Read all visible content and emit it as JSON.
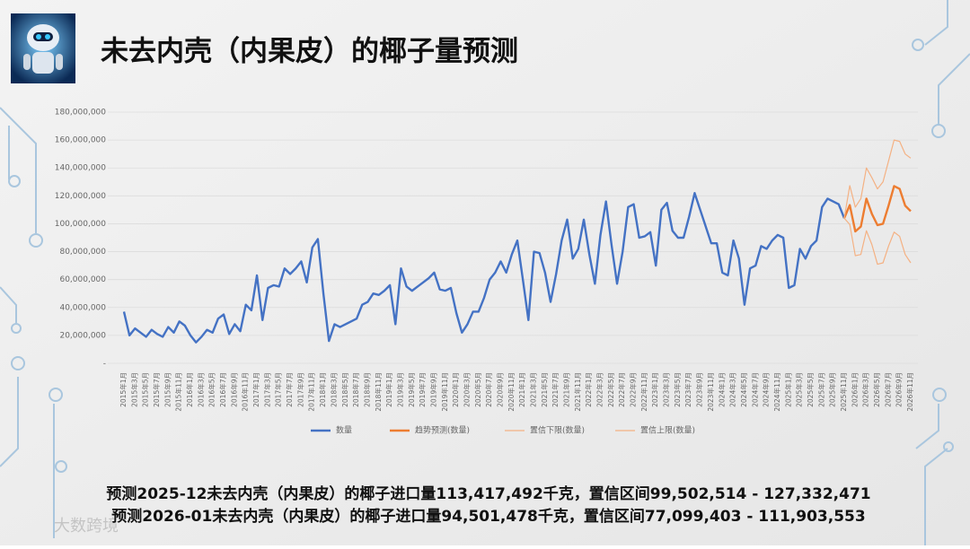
{
  "title": "未去内壳（内果皮）的椰子量预测",
  "watermark": "大数跨境",
  "notes": [
    "预测2025-12未去内壳（内果皮）的椰子进口量113,417,492千克，置信区间99,502,514 - 127,332,471",
    "预测2026-01未去内壳（内果皮）的椰子进口量94,501,478千克，置信区间77,099,403 - 111,903,553"
  ],
  "chart_data": {
    "type": "line",
    "categories": [
      "2015年1月",
      null,
      "2015年3月",
      null,
      "2015年5月",
      null,
      "2015年7月",
      null,
      "2015年9月",
      null,
      "2015年11月",
      null,
      "2016年1月",
      null,
      "2016年3月",
      null,
      "2016年5月",
      null,
      "2016年7月",
      null,
      "2016年9月",
      null,
      "2016年11月",
      null,
      "2017年1月",
      null,
      "2017年3月",
      null,
      "2017年5月",
      null,
      "2017年7月",
      null,
      "2017年9月",
      null,
      "2017年11月",
      null,
      "2018年1月",
      null,
      "2018年3月",
      null,
      "2018年5月",
      null,
      "2018年7月",
      null,
      "2018年9月",
      null,
      "2018年11月",
      null,
      "2019年1月",
      null,
      "2019年3月",
      null,
      "2019年5月",
      null,
      "2019年7月",
      null,
      "2019年9月",
      null,
      "2019年11月",
      null,
      "2020年1月",
      null,
      "2020年3月",
      null,
      "2020年5月",
      null,
      "2020年7月",
      null,
      "2020年9月",
      null,
      "2020年11月",
      null,
      "2021年1月",
      null,
      "2021年3月",
      null,
      "2021年5月",
      null,
      "2021年7月",
      null,
      "2021年9月",
      null,
      "2021年11月",
      null,
      "2022年1月",
      null,
      "2022年3月",
      null,
      "2022年5月",
      null,
      "2022年7月",
      null,
      "2022年9月",
      null,
      "2022年11月",
      null,
      "2023年1月",
      null,
      "2023年3月",
      null,
      "2023年5月",
      null,
      "2023年7月",
      null,
      "2023年9月",
      null,
      "2023年11月",
      null,
      "2024年1月",
      null,
      "2024年3月",
      null,
      "2024年5月",
      null,
      "2024年7月",
      null,
      "2024年9月",
      null,
      "2024年11月",
      null,
      "2025年1月",
      null,
      "2025年3月",
      null,
      "2025年5月",
      null,
      "2025年7月",
      null,
      "2025年9月",
      null,
      "2025年11月",
      null,
      "2026年1月",
      null,
      "2026年3月",
      null,
      "2026年5月",
      null,
      "2026年7月",
      null,
      "2026年9月",
      null,
      "2026年11月"
    ],
    "series": [
      {
        "name": "数量",
        "color": "#4472c4",
        "width": 2.4,
        "values": [
          37000000,
          20000000,
          25000000,
          22000000,
          19000000,
          24000000,
          21000000,
          19000000,
          26000000,
          22000000,
          30000000,
          27000000,
          20000000,
          15000000,
          19000000,
          24000000,
          22000000,
          32000000,
          35000000,
          21000000,
          28000000,
          23000000,
          42000000,
          38000000,
          63000000,
          31000000,
          54000000,
          56000000,
          55000000,
          68000000,
          64000000,
          68000000,
          73000000,
          58000000,
          83000000,
          89000000,
          50000000,
          16000000,
          28000000,
          26000000,
          28000000,
          30000000,
          32000000,
          42000000,
          44000000,
          50000000,
          49000000,
          52000000,
          56000000,
          28000000,
          68000000,
          55000000,
          52000000,
          55000000,
          58000000,
          61000000,
          65000000,
          53000000,
          52000000,
          54000000,
          36000000,
          22000000,
          28000000,
          37000000,
          37000000,
          47000000,
          60000000,
          65000000,
          73000000,
          65000000,
          78000000,
          88000000,
          60000000,
          31000000,
          80000000,
          79000000,
          65000000,
          44000000,
          64000000,
          88000000,
          103000000,
          75000000,
          82000000,
          103000000,
          78000000,
          57000000,
          92000000,
          116000000,
          85000000,
          57000000,
          80000000,
          112000000,
          114000000,
          90000000,
          91000000,
          94000000,
          70000000,
          110000000,
          115000000,
          95000000,
          90000000,
          90000000,
          105000000,
          122000000,
          110000000,
          98000000,
          86000000,
          86000000,
          65000000,
          63000000,
          88000000,
          75000000,
          42000000,
          68000000,
          70000000,
          84000000,
          82000000,
          88000000,
          92000000,
          90000000,
          54000000,
          56000000,
          82000000,
          75000000,
          84000000,
          88000000,
          112000000,
          118000000,
          116000000,
          114000000,
          104000000,
          null,
          null,
          null,
          null,
          null,
          null,
          null,
          null,
          null,
          null,
          null,
          null
        ]
      },
      {
        "name": "趋势预测(数量)",
        "color": "#ed7d31",
        "width": 2.4,
        "values": [
          null,
          null,
          null,
          null,
          null,
          null,
          null,
          null,
          null,
          null,
          null,
          null,
          null,
          null,
          null,
          null,
          null,
          null,
          null,
          null,
          null,
          null,
          null,
          null,
          null,
          null,
          null,
          null,
          null,
          null,
          null,
          null,
          null,
          null,
          null,
          null,
          null,
          null,
          null,
          null,
          null,
          null,
          null,
          null,
          null,
          null,
          null,
          null,
          null,
          null,
          null,
          null,
          null,
          null,
          null,
          null,
          null,
          null,
          null,
          null,
          null,
          null,
          null,
          null,
          null,
          null,
          null,
          null,
          null,
          null,
          null,
          null,
          null,
          null,
          null,
          null,
          null,
          null,
          null,
          null,
          null,
          null,
          null,
          null,
          null,
          null,
          null,
          null,
          null,
          null,
          null,
          null,
          null,
          null,
          null,
          null,
          null,
          null,
          null,
          null,
          null,
          null,
          null,
          null,
          null,
          null,
          null,
          null,
          null,
          null,
          null,
          null,
          null,
          null,
          null,
          null,
          null,
          null,
          null,
          null,
          null,
          null,
          null,
          null,
          null,
          null,
          null,
          null,
          null,
          null,
          104000000,
          113417492,
          94501478,
          98000000,
          118000000,
          107000000,
          99000000,
          100000000,
          113000000,
          127000000,
          125000000,
          113000000,
          109000000
        ]
      },
      {
        "name": "置信下限(数量)",
        "color": "#f4b183",
        "width": 1.2,
        "values": [
          null,
          null,
          null,
          null,
          null,
          null,
          null,
          null,
          null,
          null,
          null,
          null,
          null,
          null,
          null,
          null,
          null,
          null,
          null,
          null,
          null,
          null,
          null,
          null,
          null,
          null,
          null,
          null,
          null,
          null,
          null,
          null,
          null,
          null,
          null,
          null,
          null,
          null,
          null,
          null,
          null,
          null,
          null,
          null,
          null,
          null,
          null,
          null,
          null,
          null,
          null,
          null,
          null,
          null,
          null,
          null,
          null,
          null,
          null,
          null,
          null,
          null,
          null,
          null,
          null,
          null,
          null,
          null,
          null,
          null,
          null,
          null,
          null,
          null,
          null,
          null,
          null,
          null,
          null,
          null,
          null,
          null,
          null,
          null,
          null,
          null,
          null,
          null,
          null,
          null,
          null,
          null,
          null,
          null,
          null,
          null,
          null,
          null,
          null,
          null,
          null,
          null,
          null,
          null,
          null,
          null,
          null,
          null,
          null,
          null,
          null,
          null,
          null,
          null,
          null,
          null,
          null,
          null,
          null,
          null,
          null,
          null,
          null,
          null,
          null,
          null,
          null,
          null,
          null,
          null,
          104000000,
          99502514,
          77099403,
          78000000,
          95000000,
          85000000,
          71000000,
          72000000,
          84000000,
          94000000,
          91000000,
          78000000,
          72000000
        ]
      },
      {
        "name": "置信上限(数量)",
        "color": "#f4b183",
        "width": 1.2,
        "values": [
          null,
          null,
          null,
          null,
          null,
          null,
          null,
          null,
          null,
          null,
          null,
          null,
          null,
          null,
          null,
          null,
          null,
          null,
          null,
          null,
          null,
          null,
          null,
          null,
          null,
          null,
          null,
          null,
          null,
          null,
          null,
          null,
          null,
          null,
          null,
          null,
          null,
          null,
          null,
          null,
          null,
          null,
          null,
          null,
          null,
          null,
          null,
          null,
          null,
          null,
          null,
          null,
          null,
          null,
          null,
          null,
          null,
          null,
          null,
          null,
          null,
          null,
          null,
          null,
          null,
          null,
          null,
          null,
          null,
          null,
          null,
          null,
          null,
          null,
          null,
          null,
          null,
          null,
          null,
          null,
          null,
          null,
          null,
          null,
          null,
          null,
          null,
          null,
          null,
          null,
          null,
          null,
          null,
          null,
          null,
          null,
          null,
          null,
          null,
          null,
          null,
          null,
          null,
          null,
          null,
          null,
          null,
          null,
          null,
          null,
          null,
          null,
          null,
          null,
          null,
          null,
          null,
          null,
          null,
          null,
          null,
          null,
          null,
          null,
          null,
          null,
          null,
          null,
          null,
          null,
          104000000,
          127332471,
          111903553,
          118000000,
          140000000,
          133000000,
          125000000,
          130000000,
          145000000,
          160000000,
          159000000,
          150000000,
          147000000
        ]
      }
    ],
    "ylim": [
      0,
      180000000
    ],
    "yticks": [
      {
        "value": 0,
        "label": "-"
      },
      {
        "value": 20000000,
        "label": "20,000,000"
      },
      {
        "value": 40000000,
        "label": "40,000,000"
      },
      {
        "value": 60000000,
        "label": "60,000,000"
      },
      {
        "value": 80000000,
        "label": "80,000,000"
      },
      {
        "value": 100000000,
        "label": "100,000,000"
      },
      {
        "value": 120000000,
        "label": "120,000,000"
      },
      {
        "value": 140000000,
        "label": "140,000,000"
      },
      {
        "value": 160000000,
        "label": "160,000,000"
      },
      {
        "value": 180000000,
        "label": "180,000,000"
      }
    ],
    "grid": true,
    "legend": "bottom"
  }
}
